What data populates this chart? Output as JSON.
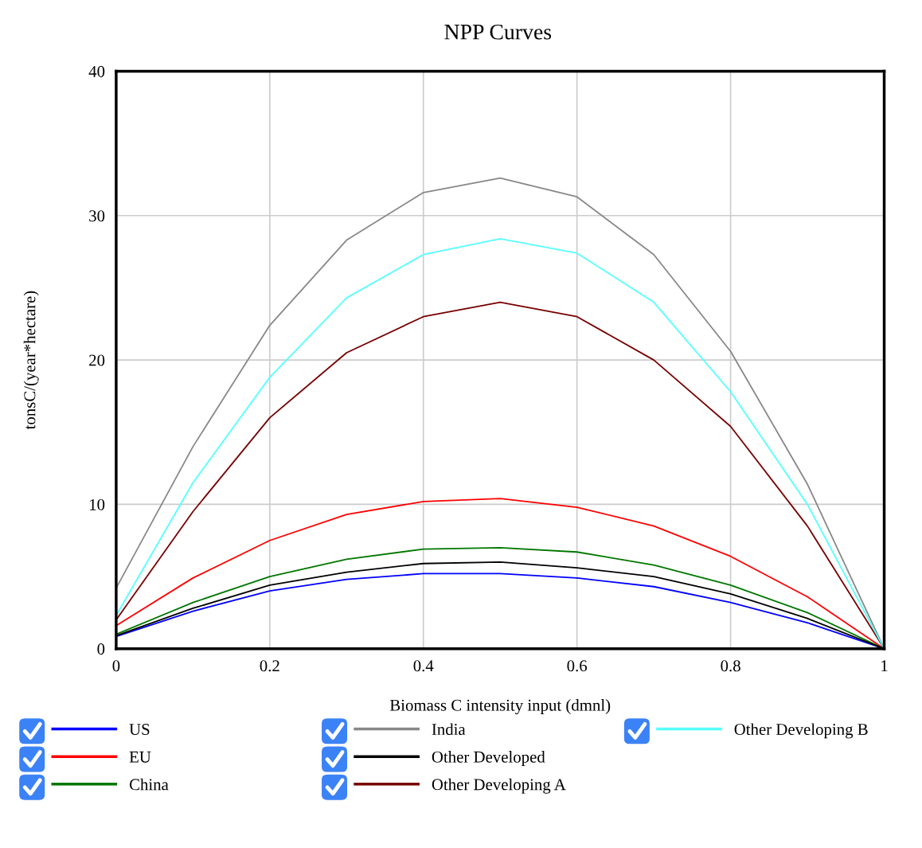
{
  "chart_data": {
    "type": "line",
    "title": "NPP Curves",
    "xlabel": "Biomass C intensity input (dmnl)",
    "ylabel": "tonsC/(year*hectare)",
    "x": [
      0,
      0.1,
      0.2,
      0.3,
      0.4,
      0.5,
      0.6,
      0.7,
      0.8,
      0.9,
      1
    ],
    "series": [
      {
        "name": "US",
        "color": "#0000ff",
        "values": [
          0.85,
          2.6,
          4.0,
          4.8,
          5.2,
          5.2,
          4.9,
          4.3,
          3.2,
          1.8,
          0
        ]
      },
      {
        "name": "EU",
        "color": "#ff0000",
        "values": [
          1.6,
          4.9,
          7.5,
          9.3,
          10.2,
          10.4,
          9.8,
          8.5,
          6.4,
          3.6,
          0
        ]
      },
      {
        "name": "China",
        "color": "#007700",
        "values": [
          1.0,
          3.2,
          5.0,
          6.2,
          6.9,
          7.0,
          6.7,
          5.8,
          4.4,
          2.5,
          0
        ]
      },
      {
        "name": "India",
        "color": "#888888",
        "values": [
          4.2,
          14.0,
          22.4,
          28.3,
          31.6,
          32.6,
          31.3,
          27.3,
          20.6,
          11.4,
          0
        ]
      },
      {
        "name": "Other Developed",
        "color": "#000000",
        "values": [
          0.9,
          2.8,
          4.4,
          5.3,
          5.9,
          6.0,
          5.6,
          5.0,
          3.8,
          2.1,
          0
        ]
      },
      {
        "name": "Other Developing A",
        "color": "#770000",
        "values": [
          2.0,
          9.5,
          16.0,
          20.5,
          23.0,
          24.0,
          23.0,
          20.0,
          15.4,
          8.5,
          0
        ]
      },
      {
        "name": "Other Developing B",
        "color": "#55ffff",
        "values": [
          2.3,
          11.5,
          18.8,
          24.3,
          27.3,
          28.4,
          27.4,
          24.0,
          17.8,
          10.0,
          0
        ]
      }
    ],
    "xlim": [
      0,
      1
    ],
    "xticks": [
      0,
      0.2,
      0.4,
      0.6,
      0.8,
      1
    ],
    "ylim": [
      0,
      40
    ],
    "yticks": [
      0,
      10,
      20,
      30,
      40
    ],
    "grid": true,
    "legend": "bottom",
    "marker": "none",
    "line_style": "solid"
  }
}
